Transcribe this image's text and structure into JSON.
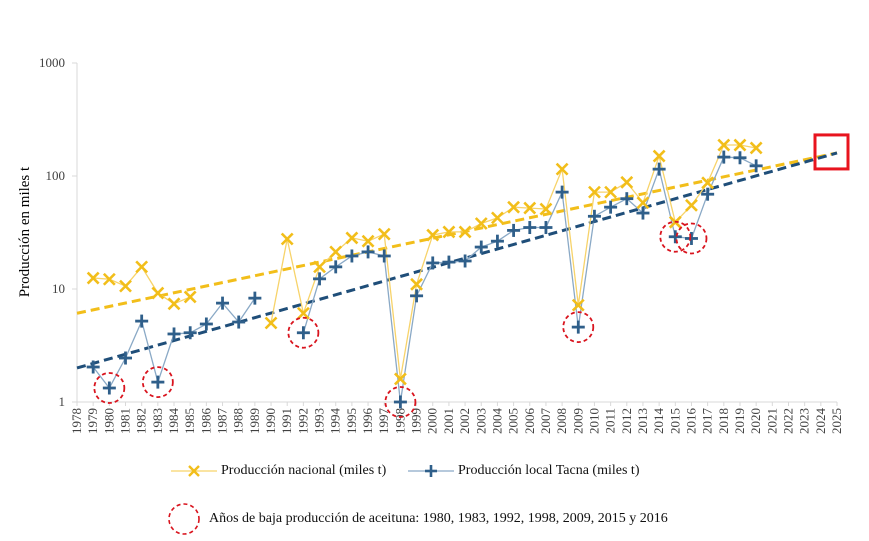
{
  "chart_data": {
    "type": "line",
    "title": "",
    "xlabel": "",
    "ylabel": "Producción en miles t",
    "yscale": "log",
    "ylim": [
      1,
      1000
    ],
    "yticks": [
      1,
      10,
      100,
      1000
    ],
    "ytick_labels": [
      "1",
      "10",
      "100",
      "1000"
    ],
    "xlim": [
      1978,
      2025
    ],
    "x": [
      1978,
      1979,
      1980,
      1981,
      1982,
      1983,
      1984,
      1985,
      1986,
      1987,
      1988,
      1989,
      1990,
      1991,
      1992,
      1993,
      1994,
      1995,
      1996,
      1997,
      1998,
      1999,
      2000,
      2001,
      2002,
      2003,
      2004,
      2005,
      2006,
      2007,
      2008,
      2009,
      2010,
      2011,
      2012,
      2013,
      2014,
      2015,
      2016,
      2017,
      2018,
      2019,
      2020,
      2021,
      2022,
      2023,
      2024,
      2025
    ],
    "xtick_labels": [
      "1978",
      "1979",
      "1980",
      "1981",
      "1982",
      "1983",
      "1984",
      "1985",
      "1986",
      "1987",
      "1988",
      "1989",
      "1990",
      "1991",
      "1992",
      "1993",
      "1994",
      "1995",
      "1996",
      "1997",
      "1998",
      "1999",
      "2000",
      "2001",
      "2002",
      "2003",
      "2004",
      "2005",
      "2006",
      "2007",
      "2008",
      "2009",
      "2010",
      "2011",
      "2012",
      "2013",
      "2014",
      "2015",
      "2016",
      "2017",
      "2018",
      "2019",
      "2020",
      "2021",
      "2022",
      "2023",
      "2024",
      "2025"
    ],
    "grid": false,
    "legend_position": "bottom",
    "series": [
      {
        "name": "Producción nacional (miles t)",
        "color": "#F2BE1A",
        "marker": "x",
        "values": [
          null,
          12.5,
          12.2,
          10.6,
          15.7,
          9.2,
          7.4,
          8.5,
          null,
          null,
          null,
          null,
          5.0,
          27.7,
          6.1,
          15.7,
          21.3,
          28.3,
          26.5,
          30.6,
          1.6,
          11.0,
          30.0,
          32.0,
          32.0,
          38.0,
          42.6,
          53.0,
          52.0,
          51.0,
          115.0,
          7.2,
          72.0,
          72.0,
          88.0,
          58.0,
          150.0,
          39.0,
          55.0,
          87.0,
          188.0,
          188.0,
          177.0,
          null,
          null,
          null,
          null,
          null
        ]
      },
      {
        "name": "Producción local Tacna (miles t)",
        "color": "#2F5F8A",
        "marker": "+",
        "values": [
          null,
          2.04,
          1.33,
          2.45,
          5.2,
          1.5,
          4.0,
          4.1,
          4.9,
          7.5,
          5.1,
          8.3,
          null,
          null,
          4.1,
          12.3,
          15.7,
          19.6,
          21.3,
          19.6,
          1.0,
          8.7,
          17.0,
          17.3,
          17.7,
          23.5,
          26.5,
          33.0,
          35.0,
          35.0,
          72.0,
          4.6,
          44.0,
          53.0,
          63.0,
          47.0,
          115.0,
          29.0,
          28.0,
          69.0,
          147.0,
          145.0,
          123.0,
          null,
          null,
          null,
          null,
          null
        ]
      }
    ],
    "trendlines": [
      {
        "name": "Tendencia nacional",
        "color": "#F2BE1A",
        "style": "dashed",
        "start": {
          "x": 1978,
          "y": 6.1
        },
        "end": {
          "x": 2025,
          "y": 160
        }
      },
      {
        "name": "Tendencia Tacna",
        "color": "#1F4E79",
        "style": "dashed",
        "start": {
          "x": 1978,
          "y": 2.0
        },
        "end": {
          "x": 2025,
          "y": 160
        }
      }
    ],
    "annotations": {
      "low_years_circles": {
        "color": "#D9141E",
        "style": "dashed-circle",
        "years": [
          1980,
          1983,
          1992,
          1998,
          2009,
          2015,
          2016
        ],
        "label": "Años de baja producción de aceituna: 1980, 1983, 1992, 1998, 2009, 2015 y 2016"
      },
      "highlight_box": {
        "color": "#E8141E",
        "x": 2025,
        "y": 160,
        "description": "projection endpoint"
      }
    }
  },
  "legend": {
    "national_label": "Producción nacional (miles t)",
    "tacna_label": "Producción local Tacna (miles t)",
    "low_years_label": "Años de baja producción de aceituna: 1980, 1983, 1992, 1998, 2009, 2015 y 2016"
  }
}
